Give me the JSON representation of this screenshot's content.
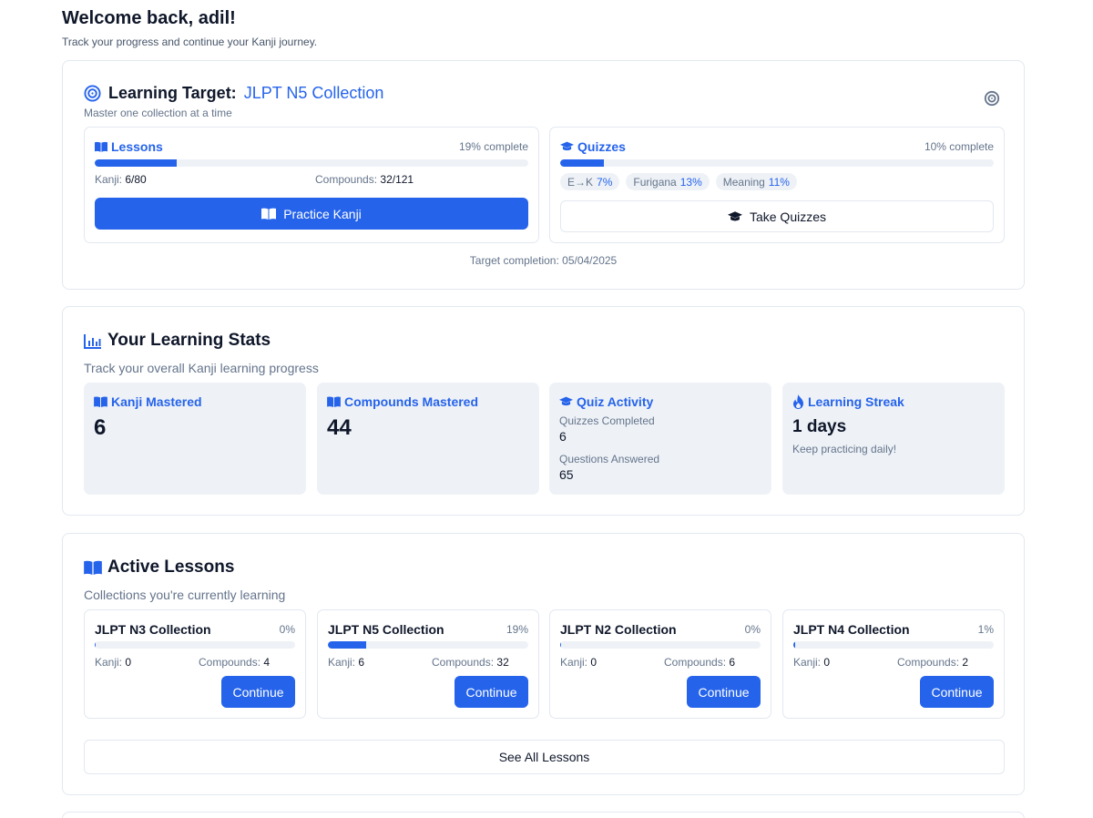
{
  "header": {
    "welcome": "Welcome back, adil!",
    "subtitle": "Track your progress and continue your Kanji journey."
  },
  "target": {
    "label": "Learning Target:",
    "collection": "JLPT N5 Collection",
    "subtitle": "Master one collection at a time",
    "completion": "Target completion: 05/04/2025",
    "lessons": {
      "title": "Lessons",
      "percent_label": "19% complete",
      "progress": 0.19,
      "kanji_label": "Kanji:",
      "kanji_value": "6/80",
      "compounds_label": "Compounds:",
      "compounds_value": "32/121",
      "button": "Practice Kanji"
    },
    "quizzes": {
      "title": "Quizzes",
      "percent_label": "10% complete",
      "progress": 0.1,
      "pills": [
        {
          "label": "E→K",
          "value": "7%"
        },
        {
          "label": "Furigana",
          "value": "13%"
        },
        {
          "label": "Meaning",
          "value": "11%"
        }
      ],
      "button": "Take Quizzes"
    }
  },
  "stats": {
    "title": "Your Learning Stats",
    "subtitle": "Track your overall Kanji learning progress",
    "kanji_mastered": {
      "title": "Kanji Mastered",
      "value": "6"
    },
    "compounds_mastered": {
      "title": "Compounds Mastered",
      "value": "44"
    },
    "quiz_activity": {
      "title": "Quiz Activity",
      "completed_label": "Quizzes Completed",
      "completed_value": "6",
      "answered_label": "Questions Answered",
      "answered_value": "65"
    },
    "streak": {
      "title": "Learning Streak",
      "value": "1 days",
      "note": "Keep practicing daily!"
    }
  },
  "active_lessons": {
    "title": "Active Lessons",
    "subtitle": "Collections you're currently learning",
    "kanji_label": "Kanji:",
    "compounds_label": "Compounds:",
    "items": [
      {
        "title": "JLPT N3 Collection",
        "percent": "0%",
        "progress": 0.0,
        "kanji": "0",
        "compounds": "4",
        "button": "Continue"
      },
      {
        "title": "JLPT N5 Collection",
        "percent": "19%",
        "progress": 0.19,
        "kanji": "6",
        "compounds": "32",
        "button": "Continue"
      },
      {
        "title": "JLPT N2 Collection",
        "percent": "0%",
        "progress": 0.0,
        "kanji": "0",
        "compounds": "6",
        "button": "Continue"
      },
      {
        "title": "JLPT N4 Collection",
        "percent": "1%",
        "progress": 0.01,
        "kanji": "0",
        "compounds": "2",
        "button": "Continue"
      }
    ],
    "see_all": "See All Lessons"
  },
  "colors": {
    "accent": "#2563eb",
    "muted": "#64748b",
    "tile_bg": "#eef2f7",
    "border": "#e2e8f0"
  },
  "icons": {
    "target": "target-icon",
    "settings": "target-settings-icon",
    "lessons": "book-open-icon",
    "quizzes": "graduation-cap-icon",
    "stats": "bar-chart-icon",
    "streak": "flame-icon"
  }
}
